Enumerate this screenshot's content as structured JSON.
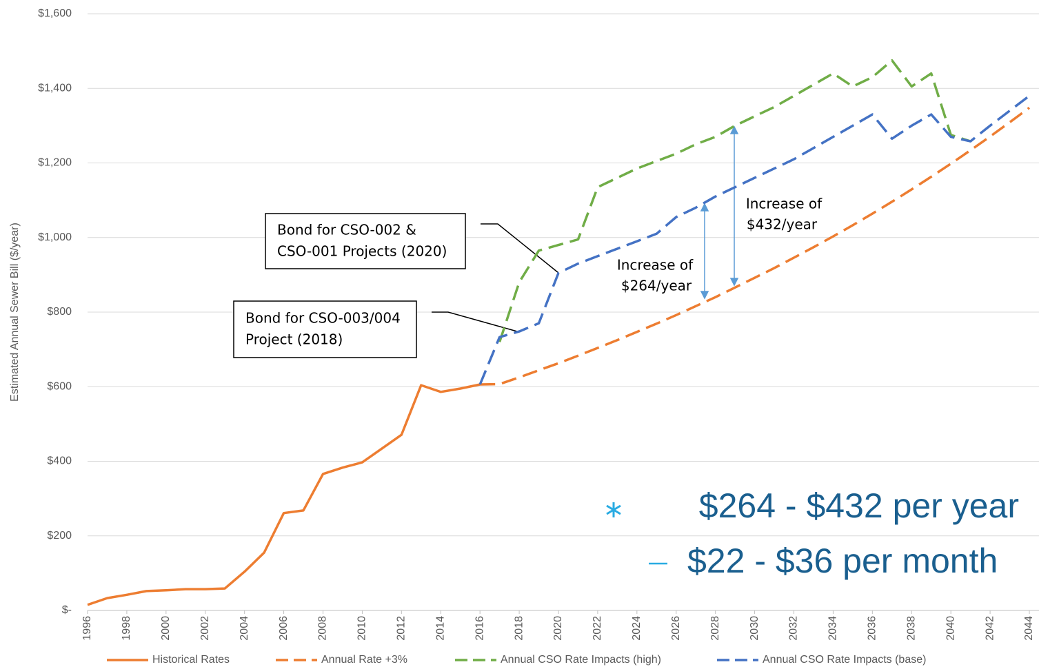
{
  "chart_data": {
    "type": "line",
    "y_label": "Estimated Annual Sewer Bill ($/year)",
    "x": [
      1996,
      1997,
      1998,
      1999,
      2000,
      2001,
      2002,
      2003,
      2004,
      2005,
      2006,
      2007,
      2008,
      2009,
      2010,
      2011,
      2012,
      2013,
      2014,
      2015,
      2016,
      2017,
      2018,
      2019,
      2020,
      2021,
      2022,
      2023,
      2024,
      2025,
      2026,
      2027,
      2028,
      2029,
      2030,
      2031,
      2032,
      2033,
      2034,
      2035,
      2036,
      2037,
      2038,
      2039,
      2040,
      2041,
      2042,
      2043,
      2044
    ],
    "series": [
      {
        "name": "Historical Rates",
        "color": "#ed7d31",
        "dashed": false,
        "values": [
          15,
          33,
          42,
          52,
          54,
          57,
          57,
          59,
          104,
          155,
          261,
          268,
          366,
          383,
          397,
          434,
          471,
          604,
          586,
          595,
          606,
          null,
          null,
          null,
          null,
          null,
          null,
          null,
          null,
          null,
          null,
          null,
          null,
          null,
          null,
          null,
          null,
          null,
          null,
          null,
          null,
          null,
          null,
          null,
          null,
          null,
          null,
          null,
          null
        ]
      },
      {
        "name": "Annual Rate +3%",
        "color": "#ed7d31",
        "dashed": true,
        "values": [
          null,
          null,
          null,
          null,
          null,
          null,
          null,
          null,
          null,
          null,
          null,
          null,
          null,
          null,
          null,
          null,
          null,
          null,
          null,
          null,
          606,
          607,
          625,
          644,
          663,
          683,
          704,
          725,
          747,
          769,
          792,
          816,
          840,
          866,
          892,
          918,
          946,
          974,
          1003,
          1033,
          1064,
          1096,
          1129,
          1163,
          1198,
          1234,
          1271,
          1309,
          1348
        ]
      },
      {
        "name": "Annual CSO Rate Impacts (high)",
        "color": "#70ad47",
        "dashed": true,
        "values": [
          null,
          null,
          null,
          null,
          null,
          null,
          null,
          null,
          null,
          null,
          null,
          null,
          null,
          null,
          null,
          null,
          null,
          null,
          null,
          null,
          null,
          720,
          880,
          965,
          980,
          995,
          1135,
          1160,
          1185,
          1205,
          1225,
          1250,
          1270,
          1300,
          1325,
          1350,
          1380,
          1410,
          1440,
          1405,
          1430,
          1475,
          1405,
          1440,
          1275,
          1258,
          null,
          null,
          null
        ]
      },
      {
        "name": "Annual CSO Rate Impacts (base)",
        "color": "#4472c4",
        "dashed": true,
        "values": [
          null,
          null,
          null,
          null,
          null,
          null,
          null,
          null,
          null,
          null,
          null,
          null,
          null,
          null,
          null,
          null,
          null,
          null,
          null,
          null,
          606,
          733,
          748,
          770,
          905,
          930,
          950,
          970,
          990,
          1010,
          1055,
          1080,
          1110,
          1135,
          1160,
          1185,
          1210,
          1240,
          1270,
          1300,
          1330,
          1265,
          1300,
          1330,
          1270,
          1258,
          1300,
          1340,
          1380
        ]
      }
    ],
    "xlim": [
      1996,
      2044
    ],
    "xticks": [
      1996,
      1998,
      2000,
      2002,
      2004,
      2006,
      2008,
      2010,
      2012,
      2014,
      2016,
      2018,
      2020,
      2022,
      2024,
      2026,
      2028,
      2030,
      2032,
      2034,
      2036,
      2038,
      2040,
      2042,
      2044
    ],
    "ylim": [
      0,
      1600
    ],
    "yticks": [
      {
        "value": 0,
        "label": "$-"
      },
      {
        "value": 200,
        "label": "$200"
      },
      {
        "value": 400,
        "label": "$400"
      },
      {
        "value": 600,
        "label": "$600"
      },
      {
        "value": 800,
        "label": "$800"
      },
      {
        "value": 1000,
        "label": "$1,000"
      },
      {
        "value": 1200,
        "label": "$1,200"
      },
      {
        "value": 1400,
        "label": "$1,400"
      },
      {
        "value": 1600,
        "label": "$1,600"
      }
    ],
    "grid": true,
    "legend": "bottom",
    "annotations": [
      {
        "text": [
          "Bond for CSO-002 &",
          "CSO-001 Projects (2020)"
        ]
      },
      {
        "text": [
          "Bond for CSO-003/004",
          "Project (2018)"
        ]
      },
      {
        "text": [
          "Increase of",
          "$264/year"
        ]
      },
      {
        "text": [
          "Increase of",
          "$432/year"
        ]
      }
    ],
    "callouts": [
      "$264 - $432 per year",
      "$22 - $36 per month"
    ]
  }
}
